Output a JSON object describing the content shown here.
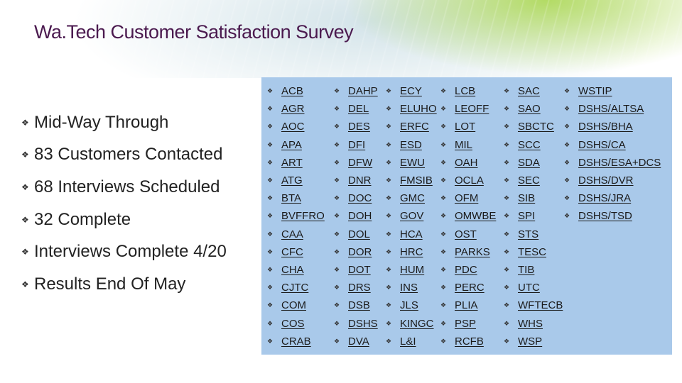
{
  "title": "Wa.Tech Customer Satisfaction Survey",
  "bullets": [
    "Mid-Way Through",
    "83 Customers Contacted",
    "68 Interviews Scheduled",
    "32 Complete",
    "Interviews Complete 4/20",
    "Results End Of May"
  ],
  "agencies": {
    "col1": [
      "ACB",
      "AGR",
      "AOC",
      "APA",
      "ART",
      "ATG",
      "BTA",
      "BVFFRO",
      "CAA",
      "CFC",
      "CHA",
      "CJTC",
      "COM",
      "COS",
      "CRAB"
    ],
    "col2": [
      "DAHP",
      "DEL",
      "DES",
      "DFI",
      "DFW",
      "DNR",
      "DOC",
      "DOH",
      "DOL",
      "DOR",
      "DOT",
      "DRS",
      "DSB",
      "DSHS",
      "DVA"
    ],
    "col3": [
      "ECY",
      "ELUHO",
      "ERFC",
      "ESD",
      "EWU",
      "FMSIB",
      "GMC",
      "GOV",
      "HCA",
      "HRC",
      "HUM",
      "INS",
      "JLS",
      "KINGC",
      "L&I"
    ],
    "col4": [
      "LCB",
      "LEOFF",
      "LOT",
      "MIL",
      "OAH",
      "OCLA",
      "OFM",
      "OMWBE",
      "OST",
      "PARKS",
      "PDC",
      "PERC",
      "PLIA",
      "PSP",
      "RCFB"
    ],
    "col5": [
      "SAC",
      "SAO",
      "SBCTC",
      "SCC",
      "SDA",
      "SEC",
      "SIB",
      "SPI",
      "STS",
      "TESC",
      "TIB",
      "UTC",
      "WFTECB",
      "WHS",
      "WSP"
    ],
    "col6": [
      "WSTIP",
      "DSHS/ALTSA",
      "DSHS/BHA",
      "DSHS/CA",
      "DSHS/ESA+DCS",
      "DSHS/DVR",
      "DSHS/JRA",
      "DSHS/TSD"
    ]
  },
  "colors": {
    "title": "#4b1a4f",
    "panel": "#a9c9ea",
    "accent_green": "#a8d64a"
  },
  "icons": {
    "bullet": "bullet-square-icon"
  }
}
